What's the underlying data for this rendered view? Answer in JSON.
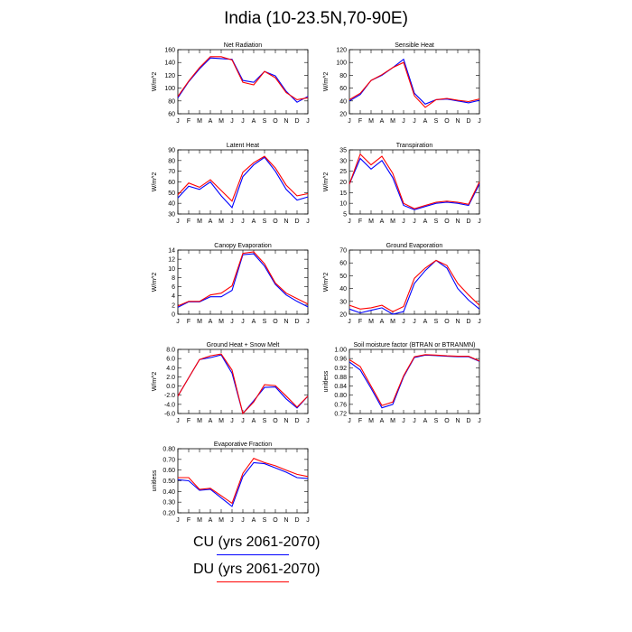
{
  "title": "India (10-23.5N,70-90E)",
  "months": [
    "J",
    "F",
    "M",
    "A",
    "M",
    "J",
    "J",
    "A",
    "S",
    "O",
    "N",
    "D",
    "J"
  ],
  "colors": {
    "cu": "#0000ff",
    "du": "#ff0000"
  },
  "legend": {
    "entries": [
      {
        "label": "CU (yrs 2061-2070)",
        "color": "#0000ff"
      },
      {
        "label": "DU (yrs 2061-2070)",
        "color": "#ff0000"
      }
    ]
  },
  "chart_data": [
    {
      "type": "line",
      "title": "Net Radiation",
      "ylabel": "W/m^2",
      "ylim": [
        60,
        160
      ],
      "yticks": [
        "60",
        "80",
        "100",
        "120",
        "140",
        "160"
      ],
      "series": [
        {
          "name": "CU (yrs 2061-2070)",
          "values": [
            85,
            110,
            130,
            147,
            146,
            145,
            112,
            109,
            126,
            119,
            95,
            78,
            87
          ]
        },
        {
          "name": "DU (yrs 2061-2070)",
          "values": [
            87,
            111,
            132,
            149,
            149,
            144,
            109,
            105,
            126,
            116,
            93,
            82,
            85
          ]
        }
      ]
    },
    {
      "type": "line",
      "title": "Sensible Heat",
      "ylabel": "W/m^2",
      "ylim": [
        20,
        120
      ],
      "yticks": [
        "20",
        "40",
        "60",
        "80",
        "100",
        "120"
      ],
      "series": [
        {
          "name": "CU (yrs 2061-2070)",
          "values": [
            40,
            50,
            72,
            80,
            92,
            105,
            52,
            35,
            42,
            43,
            40,
            37,
            41
          ]
        },
        {
          "name": "DU (yrs 2061-2070)",
          "values": [
            42,
            52,
            72,
            81,
            92,
            100,
            48,
            30,
            42,
            44,
            41,
            39,
            43
          ]
        }
      ]
    },
    {
      "type": "line",
      "title": "Latent Heat",
      "ylabel": "W/m^2",
      "ylim": [
        30,
        90
      ],
      "yticks": [
        "30",
        "40",
        "50",
        "60",
        "70",
        "80",
        "90"
      ],
      "series": [
        {
          "name": "CU (yrs 2061-2070)",
          "values": [
            45,
            56,
            53,
            60,
            47,
            36,
            65,
            76,
            83,
            70,
            53,
            43,
            46
          ]
        },
        {
          "name": "DU (yrs 2061-2070)",
          "values": [
            48,
            59,
            55,
            62,
            52,
            42,
            69,
            78,
            84,
            73,
            57,
            47,
            49
          ]
        }
      ]
    },
    {
      "type": "line",
      "title": "Transpiration",
      "ylabel": "W/m^2",
      "ylim": [
        5,
        35
      ],
      "yticks": [
        "5",
        "10",
        "15",
        "20",
        "25",
        "30",
        "35"
      ],
      "series": [
        {
          "name": "CU (yrs 2061-2070)",
          "values": [
            19,
            31,
            26,
            30,
            22,
            9,
            7,
            8.5,
            10,
            10.5,
            10,
            9,
            19
          ]
        },
        {
          "name": "DU (yrs 2061-2070)",
          "values": [
            19,
            33,
            28,
            32,
            24,
            10,
            7.5,
            9,
            10.5,
            11,
            10.5,
            9.5,
            20
          ]
        }
      ]
    },
    {
      "type": "line",
      "title": "Canopy Evaporation",
      "ylabel": "W/m^2",
      "ylim": [
        0,
        14
      ],
      "yticks": [
        "0",
        "2",
        "4",
        "6",
        "8",
        "10",
        "12",
        "14"
      ],
      "series": [
        {
          "name": "CU (yrs 2061-2070)",
          "values": [
            1.5,
            2.7,
            2.7,
            3.8,
            3.8,
            5.2,
            13,
            13.2,
            10.5,
            6.5,
            4.2,
            2.8,
            1.6
          ]
        },
        {
          "name": "DU (yrs 2061-2070)",
          "values": [
            1.8,
            2.8,
            2.8,
            4.2,
            4.6,
            6.2,
            13.3,
            13.6,
            11,
            6.8,
            4.6,
            3.4,
            2.2
          ]
        }
      ]
    },
    {
      "type": "line",
      "title": "Ground Evaporation",
      "ylabel": "W/m^2",
      "ylim": [
        20,
        70
      ],
      "yticks": [
        "20",
        "30",
        "40",
        "50",
        "60",
        "70"
      ],
      "series": [
        {
          "name": "CU (yrs 2061-2070)",
          "values": [
            24,
            21,
            23,
            25,
            20,
            22,
            44,
            54,
            62,
            56,
            40,
            31,
            24
          ]
        },
        {
          "name": "DU (yrs 2061-2070)",
          "values": [
            27,
            24,
            25,
            27,
            22,
            26,
            48,
            56,
            62,
            58,
            44,
            35,
            27
          ]
        }
      ]
    },
    {
      "type": "line",
      "title": "Ground Heat + Snow Melt",
      "ylabel": "W/m^2",
      "ylim": [
        -6,
        8
      ],
      "yticks": [
        "-6.0",
        "-4.0",
        "-2.0",
        "0.0",
        "2.0",
        "4.0",
        "6.0",
        "8.0"
      ],
      "series": [
        {
          "name": "CU (yrs 2061-2070)",
          "values": [
            -2.2,
            1.8,
            5.8,
            6.2,
            6.8,
            2.8,
            -6,
            -3.2,
            -0.3,
            -0.2,
            -2.8,
            -4.8,
            -2.2
          ]
        },
        {
          "name": "DU (yrs 2061-2070)",
          "values": [
            -2.2,
            1.8,
            5.8,
            6.6,
            7.0,
            3.5,
            -6,
            -3.5,
            0.3,
            0.1,
            -2.2,
            -4.6,
            -2.2
          ]
        }
      ]
    },
    {
      "type": "line",
      "title": "Soil moisture factor (BTRAN or BTRANMN)",
      "ylabel": "unitless",
      "ylim": [
        0.72,
        1.0
      ],
      "yticks": [
        "0.72",
        "0.76",
        "0.80",
        "0.84",
        "0.88",
        "0.92",
        "0.96",
        "1.00"
      ],
      "series": [
        {
          "name": "CU (yrs 2061-2070)",
          "values": [
            0.945,
            0.91,
            0.83,
            0.745,
            0.76,
            0.88,
            0.965,
            0.975,
            0.973,
            0.97,
            0.968,
            0.968,
            0.948
          ]
        },
        {
          "name": "DU (yrs 2061-2070)",
          "values": [
            0.955,
            0.925,
            0.84,
            0.755,
            0.77,
            0.885,
            0.968,
            0.977,
            0.975,
            0.972,
            0.97,
            0.97,
            0.95
          ]
        }
      ]
    },
    {
      "type": "line",
      "title": "Evaporative Fraction",
      "ylabel": "unitless",
      "ylim": [
        0.2,
        0.8
      ],
      "yticks": [
        "0.20",
        "0.30",
        "0.40",
        "0.50",
        "0.60",
        "0.70",
        "0.80"
      ],
      "series": [
        {
          "name": "CU (yrs 2061-2070)",
          "values": [
            0.51,
            0.5,
            0.41,
            0.42,
            0.34,
            0.26,
            0.54,
            0.67,
            0.66,
            0.62,
            0.58,
            0.53,
            0.52
          ]
        },
        {
          "name": "DU (yrs 2061-2070)",
          "values": [
            0.53,
            0.53,
            0.42,
            0.43,
            0.36,
            0.29,
            0.57,
            0.71,
            0.67,
            0.64,
            0.6,
            0.56,
            0.54
          ]
        }
      ]
    }
  ]
}
